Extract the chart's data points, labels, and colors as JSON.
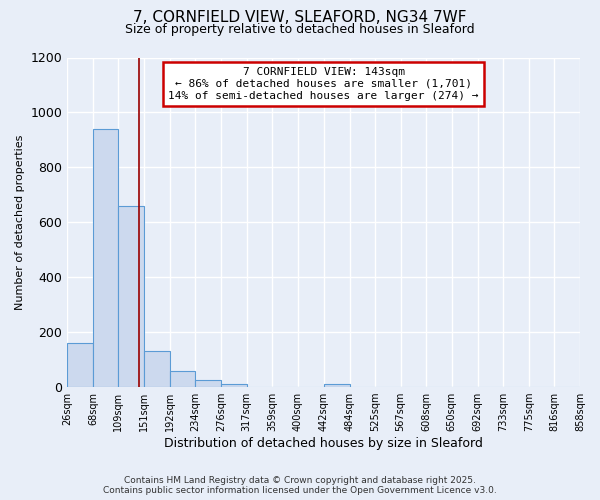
{
  "title": "7, CORNFIELD VIEW, SLEAFORD, NG34 7WF",
  "subtitle": "Size of property relative to detached houses in Sleaford",
  "xlabel": "Distribution of detached houses by size in Sleaford",
  "ylabel": "Number of detached properties",
  "bin_labels": [
    "26sqm",
    "68sqm",
    "109sqm",
    "151sqm",
    "192sqm",
    "234sqm",
    "276sqm",
    "317sqm",
    "359sqm",
    "400sqm",
    "442sqm",
    "484sqm",
    "525sqm",
    "567sqm",
    "608sqm",
    "650sqm",
    "692sqm",
    "733sqm",
    "775sqm",
    "816sqm",
    "858sqm"
  ],
  "bin_edges": [
    26,
    68,
    109,
    151,
    192,
    234,
    276,
    317,
    359,
    400,
    442,
    484,
    525,
    567,
    608,
    650,
    692,
    733,
    775,
    816,
    858
  ],
  "bar_heights": [
    160,
    940,
    660,
    130,
    60,
    25,
    10,
    0,
    0,
    0,
    10,
    0,
    0,
    0,
    0,
    0,
    0,
    0,
    0,
    0
  ],
  "bar_color": "#ccd9ee",
  "bar_edge_color": "#5b9bd5",
  "red_line_x": 143,
  "annotation_line1": "7 CORNFIELD VIEW: 143sqm",
  "annotation_line2": "← 86% of detached houses are smaller (1,701)",
  "annotation_line3": "14% of semi-detached houses are larger (274) →",
  "annotation_box_color": "#ffffff",
  "annotation_box_edge_color": "#cc0000",
  "ylim": [
    0,
    1200
  ],
  "yticks": [
    0,
    200,
    400,
    600,
    800,
    1000,
    1200
  ],
  "background_color": "#e8eef8",
  "grid_color": "#ffffff",
  "footer_line1": "Contains HM Land Registry data © Crown copyright and database right 2025.",
  "footer_line2": "Contains public sector information licensed under the Open Government Licence v3.0."
}
